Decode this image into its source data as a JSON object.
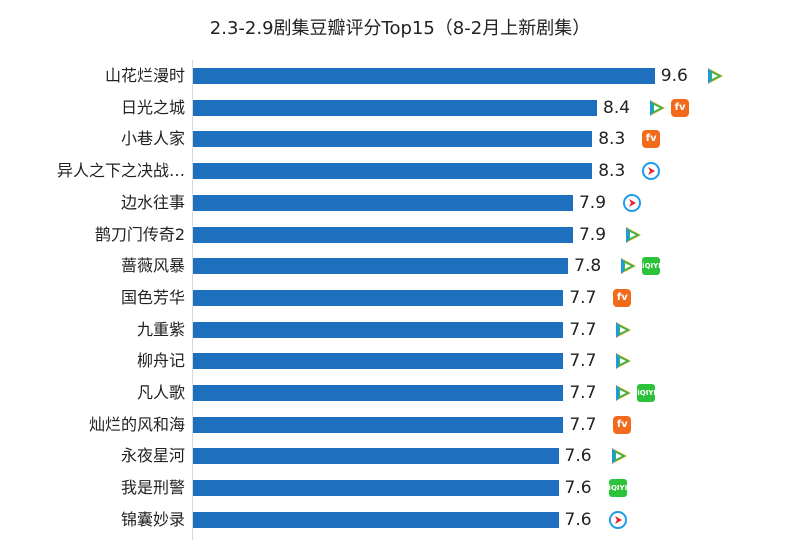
{
  "chart_data": {
    "type": "bar",
    "orientation": "horizontal",
    "title": "2.3-2.9剧集豆瓣评分Top15（8-2月上新剧集）",
    "categories": [
      "山花烂漫时",
      "日光之城",
      "小巷人家",
      "异人之下之决战…",
      "边水往事",
      "鹊刀门传奇2",
      "蔷薇风暴",
      "国色芳华",
      "九重紫",
      "柳舟记",
      "凡人歌",
      "灿烂的风和海",
      "永夜星河",
      "我是刑警",
      "锦囊妙录"
    ],
    "values": [
      9.6,
      8.4,
      8.3,
      8.3,
      7.9,
      7.9,
      7.8,
      7.7,
      7.7,
      7.7,
      7.7,
      7.7,
      7.6,
      7.6,
      7.6
    ],
    "value_labels": [
      "9.6",
      "8.4",
      "8.3",
      "8.3",
      "7.9",
      "7.9",
      "7.8",
      "7.7",
      "7.7",
      "7.7",
      "7.7",
      "7.7",
      "7.6",
      "7.6",
      "7.6"
    ],
    "platforms": [
      [
        "tencent"
      ],
      [
        "tencent",
        "mango"
      ],
      [
        "mango"
      ],
      [
        "youku"
      ],
      [
        "youku"
      ],
      [
        "tencent"
      ],
      [
        "tencent",
        "iqiyi"
      ],
      [
        "mango"
      ],
      [
        "tencent"
      ],
      [
        "tencent"
      ],
      [
        "tencent",
        "iqiyi"
      ],
      [
        "mango"
      ],
      [
        "tencent"
      ],
      [
        "iqiyi"
      ],
      [
        "youku"
      ]
    ],
    "xlim": [
      0,
      10
    ],
    "color": "#1f6fbf"
  },
  "icon_text": {
    "mango": "fv",
    "iqiyi": "iQIYI"
  }
}
